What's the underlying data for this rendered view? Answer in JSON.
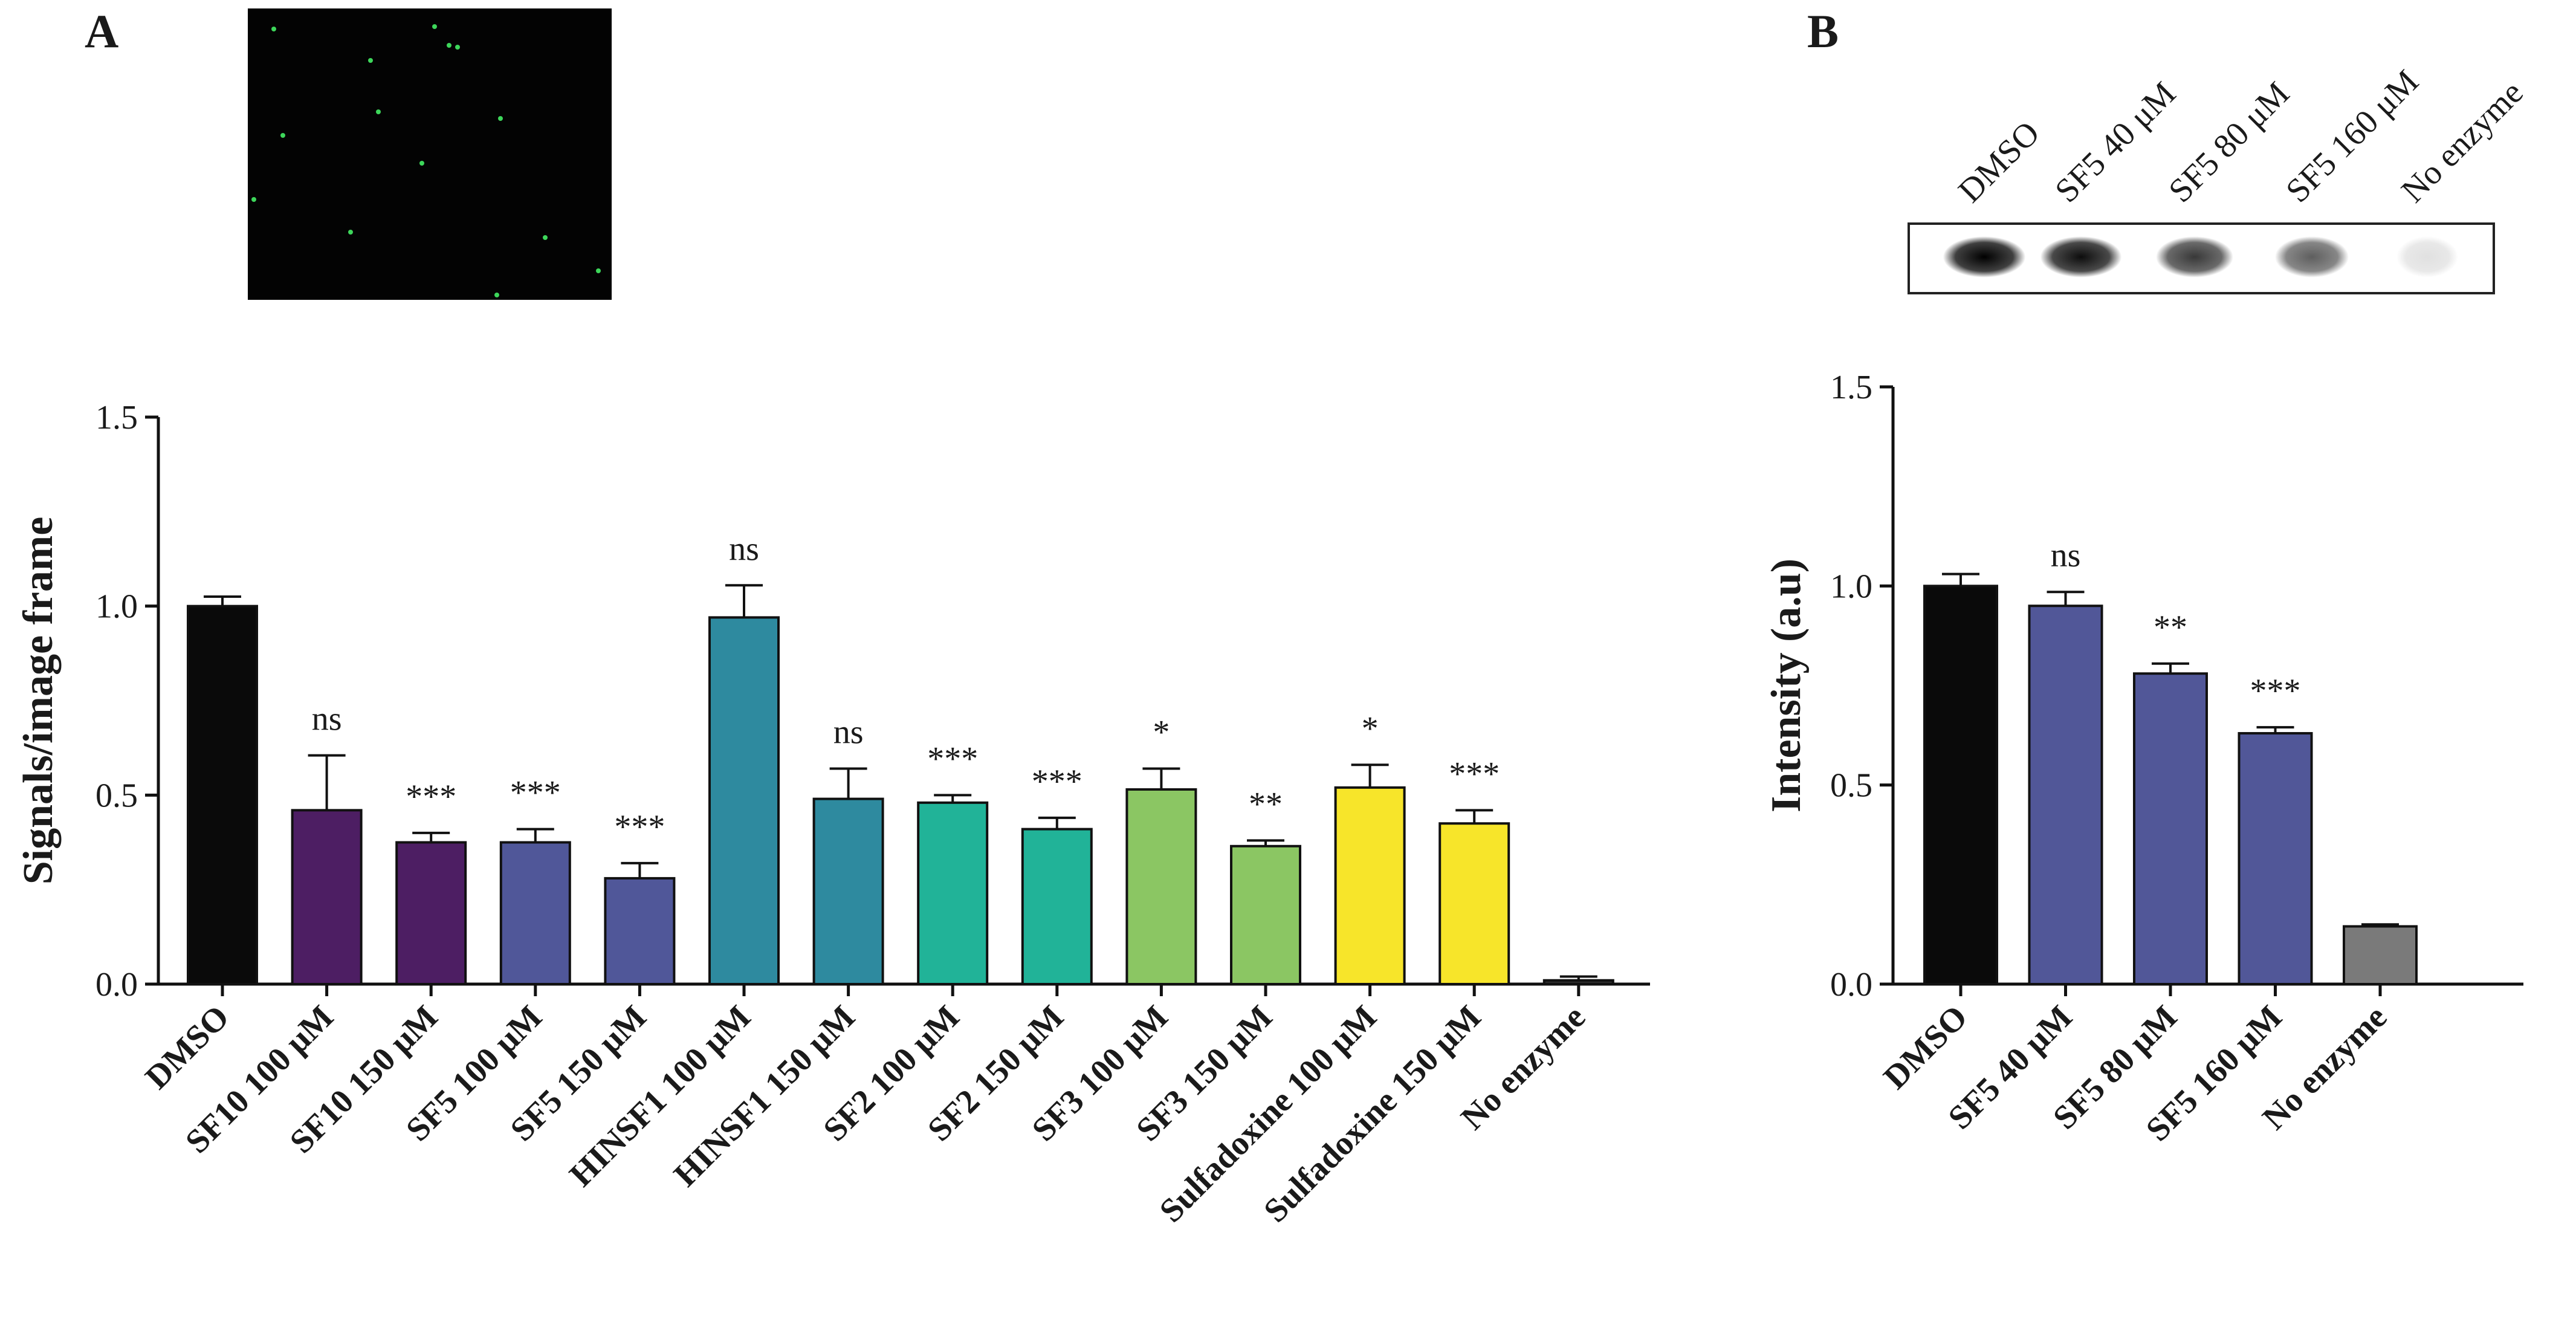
{
  "panels": [
    {
      "letter": "A"
    },
    {
      "letter": "B"
    }
  ],
  "chart_data": [
    {
      "panel": "A",
      "type": "bar",
      "ylabel": "Signals/image frame",
      "ylim": [
        0,
        1.5
      ],
      "yticks": [
        "0.0",
        "0.5",
        "1.0",
        "1.5"
      ],
      "categories": [
        "DMSO",
        "SF10 100 μM",
        "SF10 150 μM",
        "SF5 100 μM",
        "SF5 150 μM",
        "HINSF1 100 μM",
        "HINSF1 150 μM",
        "SF2 100 μM",
        "SF2 150 μM",
        "SF3 100 μM",
        "SF3 150 μM",
        "Sulfadoxine 100 μM",
        "Sulfadoxine 150 μM",
        "No enzyme"
      ],
      "values": [
        1.0,
        0.46,
        0.375,
        0.375,
        0.28,
        0.97,
        0.49,
        0.48,
        0.41,
        0.515,
        0.365,
        0.52,
        0.425,
        0.01
      ],
      "errors": [
        0.025,
        0.145,
        0.025,
        0.035,
        0.04,
        0.085,
        0.08,
        0.02,
        0.03,
        0.055,
        0.015,
        0.06,
        0.035,
        0.01
      ],
      "significance": [
        "",
        "ns",
        "***",
        "***",
        "***",
        "ns",
        "ns",
        "***",
        "***",
        "*",
        "**",
        "*",
        "***",
        ""
      ],
      "colors": [
        "#0a0a0a",
        "#4d1e63",
        "#4d1e63",
        "#505799",
        "#505799",
        "#2e8a9f",
        "#2e8a9f",
        "#21b398",
        "#21b398",
        "#8bc663",
        "#8bc663",
        "#f7e52a",
        "#f7e52a",
        "#2b2b2b"
      ],
      "grid": false
    },
    {
      "panel": "B",
      "type": "bar",
      "ylabel": "Intensity (a.u)",
      "ylim": [
        0,
        1.5
      ],
      "yticks": [
        "0.0",
        "0.5",
        "1.0",
        "1.5"
      ],
      "categories": [
        "DMSO",
        "SF5 40 μM",
        "SF5 80 μM",
        "SF5 160 μM",
        "No enzyme"
      ],
      "values": [
        1.0,
        0.95,
        0.78,
        0.63,
        0.145
      ],
      "errors": [
        0.03,
        0.035,
        0.025,
        0.015,
        0.005
      ],
      "significance": [
        "",
        "ns",
        "**",
        "***",
        ""
      ],
      "colors": [
        "#0a0a0a",
        "#515798",
        "#515798",
        "#515798",
        "#7a7a7a"
      ],
      "grid": false
    }
  ],
  "blot": {
    "lanes": [
      "DMSO",
      "SF5 40 μM",
      "SF5 80 μM",
      "SF5 160 μM",
      "No enzyme"
    ],
    "band_intensity": [
      1.0,
      0.95,
      0.78,
      0.63,
      0.12
    ]
  },
  "colors": {
    "micrograph_background": "#030303",
    "micrograph_spot": "#3dd65a"
  }
}
